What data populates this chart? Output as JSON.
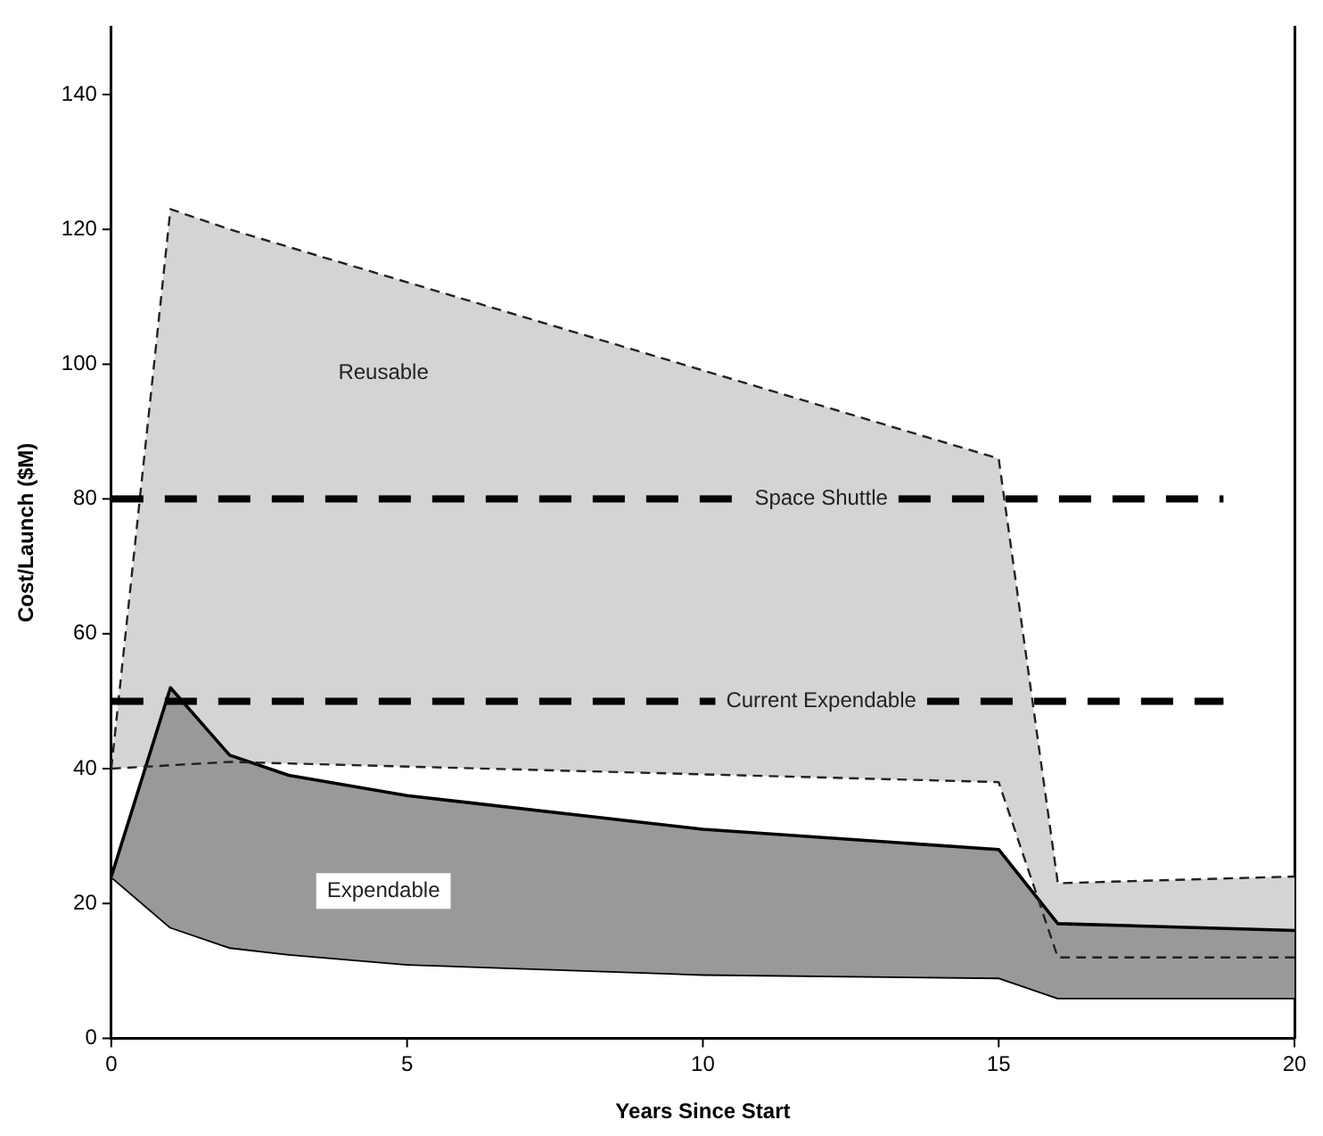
{
  "chart_data": {
    "type": "area",
    "xlabel": "Years Since Start",
    "ylabel": "Cost/Launch ($M)",
    "xlim": [
      0,
      20
    ],
    "xticks": [
      0,
      5,
      10,
      15,
      20
    ],
    "ylim": [
      0,
      150
    ],
    "yticks": [
      0,
      20,
      40,
      60,
      80,
      100,
      120,
      140
    ],
    "series": [
      {
        "type": "line",
        "color": "#222222",
        "line_style": "dashed",
        "x": [
          0,
          1,
          2,
          15,
          16,
          20
        ],
        "values": [
          40,
          40.5,
          41,
          38,
          12,
          12
        ]
      },
      {
        "name": "Reusable",
        "color": "#d4d4d4",
        "line_style": "dashed",
        "x": [
          0,
          1,
          2,
          15,
          16,
          20
        ],
        "values": [
          40,
          123,
          120,
          86,
          23,
          24
        ]
      },
      {
        "type": "line",
        "color": "#000000",
        "line_style": "solid",
        "x": [
          0,
          1,
          2,
          3,
          5,
          10,
          15,
          16,
          20
        ],
        "values": [
          24,
          16.5,
          13.5,
          12.5,
          11,
          9.5,
          9,
          6,
          6
        ]
      },
      {
        "name": "Expendable",
        "color": "#999999",
        "line_style": "solid",
        "x": [
          0,
          1,
          2,
          3,
          5,
          10,
          15,
          16,
          20
        ],
        "values": [
          24,
          52,
          42,
          39,
          36,
          31,
          28,
          17,
          16
        ]
      }
    ],
    "ref_lines": [
      {
        "axis": "y",
        "value": 80,
        "label": "Space Shuttle",
        "color": "#000000",
        "line_style": "dashed"
      },
      {
        "axis": "y",
        "value": 50,
        "label": "Current Expendable",
        "color": "#000000",
        "line_style": "dashed"
      }
    ]
  }
}
